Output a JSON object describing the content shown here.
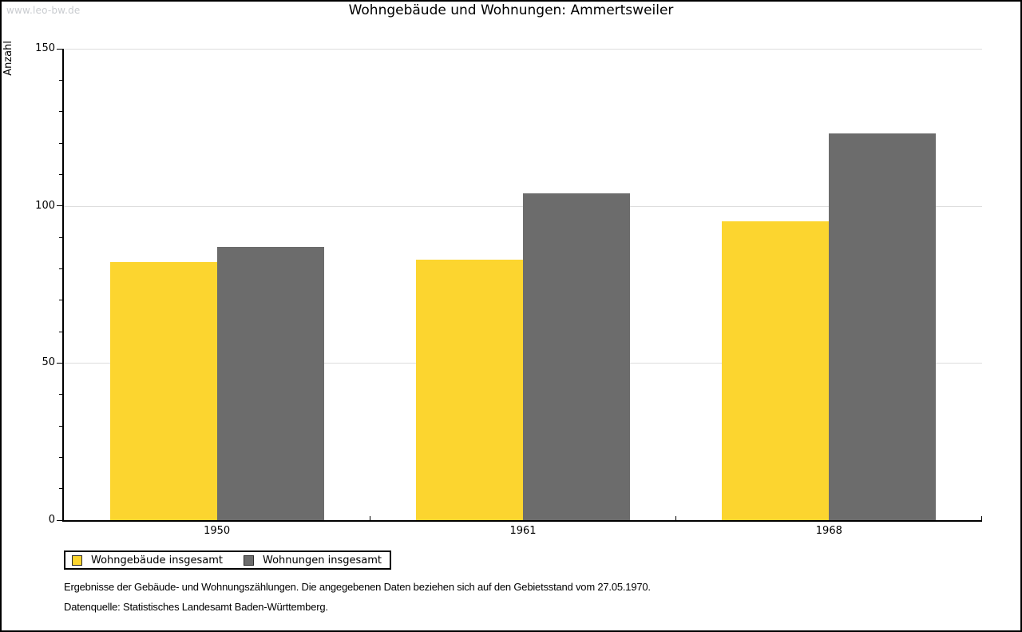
{
  "page": {
    "watermark": "www.leo-bw.de"
  },
  "chart_data": {
    "type": "bar",
    "title": "Wohngebäude und Wohnungen: Ammertsweiler",
    "xlabel": "",
    "ylabel": "Anzahl",
    "categories": [
      "1950",
      "1961",
      "1968"
    ],
    "series": [
      {
        "name": "Wohngebäude insgesamt",
        "color": "#FCD52F",
        "values": [
          82,
          83,
          95
        ]
      },
      {
        "name": "Wohnungen insgesamt",
        "color": "#6C6C6C",
        "values": [
          87,
          104,
          123
        ]
      }
    ],
    "ylim": [
      0,
      150
    ],
    "yticks": [
      0,
      50,
      100,
      150
    ],
    "minor_tick_step": 10,
    "grid": true,
    "gridline_color": "#dedede",
    "legend_position": "bottom-left"
  },
  "footer": {
    "line1": "Ergebnisse der Gebäude- und Wohnungszählungen. Die angegebenen Daten beziehen sich auf den Gebietsstand vom 27.05.1970.",
    "line2": "Datenquelle: Statistisches Landesamt Baden-Württemberg."
  }
}
